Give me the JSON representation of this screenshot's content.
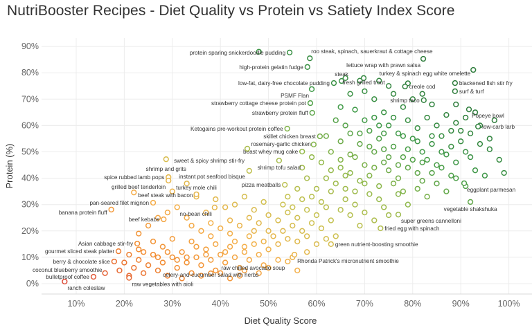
{
  "title": "NutriBooster Recipes - Diet Quality vs Protein vs Satiety Index Score",
  "chart_data": {
    "type": "scatter",
    "title": "NutriBooster Recipes - Diet Quality vs Protein vs Satiety Index Score",
    "xlabel": "Diet Quality Score",
    "ylabel": "Protein (%)",
    "xlim": [
      5,
      102
    ],
    "ylim": [
      -3,
      92
    ],
    "xticks": [
      "10%",
      "20%",
      "30%",
      "40%",
      "50%",
      "60%",
      "70%",
      "80%",
      "90%",
      "100%"
    ],
    "xtick_values": [
      10,
      20,
      30,
      40,
      50,
      60,
      70,
      80,
      90,
      100
    ],
    "yticks": [
      "0%",
      "10%",
      "20%",
      "30%",
      "40%",
      "50%",
      "60%",
      "70%",
      "80%",
      "90%"
    ],
    "ytick_values": [
      0,
      10,
      20,
      30,
      40,
      50,
      60,
      70,
      80,
      90
    ],
    "grid": true,
    "marker": "hollow-circle",
    "color_encoding": "Satiety Index Score",
    "color_scale": [
      "#dc4a36",
      "#f28b30",
      "#f4b04a",
      "#c9c250",
      "#8fb84a",
      "#3f9a48",
      "#2e7d3c"
    ],
    "labeled_points": [
      {
        "label": "protein sparing snickerdoodle pudding",
        "x": 54.4,
        "y": 87.7,
        "side": "left"
      },
      {
        "label": "roo steak, spinach, sauerkraut & cottage cheese",
        "x": 58.6,
        "y": 85.5,
        "side": "above-right"
      },
      {
        "label": "high-protein gelatin fudge",
        "x": 58.1,
        "y": 82.2,
        "side": "left"
      },
      {
        "label": "lettuce wrap with prawn salsa",
        "x": 82.2,
        "y": 85.3,
        "side": "below-left"
      },
      {
        "label": "low-fat, dairy-free chocolate pudding",
        "x": 63.6,
        "y": 76.1,
        "side": "left"
      },
      {
        "label": "steak",
        "x": 65.2,
        "y": 76.9,
        "side": "above"
      },
      {
        "label": "fresh grilled trout",
        "x": 69.8,
        "y": 78.0,
        "side": "above"
      },
      {
        "label": "turkey & spinach egg white omelette",
        "x": 92.6,
        "y": 81.1,
        "side": "below-left"
      },
      {
        "label": "blackened fish stir fry",
        "x": 88.8,
        "y": 76.1,
        "side": "right"
      },
      {
        "label": "creole cod",
        "x": 78.4,
        "y": 74.8,
        "side": "right"
      },
      {
        "label": "PSMF Flan",
        "x": 59.0,
        "y": 73.8,
        "side": "below-left"
      },
      {
        "label": "surf & turf",
        "x": 88.8,
        "y": 73.0,
        "side": "right"
      },
      {
        "label": "strawberry cottage cheese protein pot",
        "x": 58.7,
        "y": 68.5,
        "side": "left"
      },
      {
        "label": "shrimp taco",
        "x": 82.3,
        "y": 69.6,
        "side": "left"
      },
      {
        "label": "strawberry protein fluff",
        "x": 59.1,
        "y": 64.8,
        "side": "left"
      },
      {
        "label": "Popeye bowl",
        "x": 91.7,
        "y": 66.1,
        "side": "below-right"
      },
      {
        "label": "Ketogains pre-workout protein coffee",
        "x": 53.9,
        "y": 58.8,
        "side": "left"
      },
      {
        "label": "low-carb larb",
        "x": 93.6,
        "y": 59.6,
        "side": "right"
      },
      {
        "label": "skillet chicken breast",
        "x": 60.7,
        "y": 55.9,
        "side": "left"
      },
      {
        "label": "rosemary-garlic chicken",
        "x": 59.4,
        "y": 52.8,
        "side": "above-left"
      },
      {
        "label": "beast whey mug cake",
        "x": 57.0,
        "y": 50.1,
        "side": "left"
      },
      {
        "label": "sweet & spicy shrimp stir-fry",
        "x": 45.6,
        "y": 51.2,
        "side": "below-left"
      },
      {
        "label": "shrimp and grits",
        "x": 28.7,
        "y": 47.2,
        "side": "below"
      },
      {
        "label": "instant pot seafood bisque",
        "x": 46.0,
        "y": 42.8,
        "side": "left"
      },
      {
        "label": "shrimp tofu salad",
        "x": 52.2,
        "y": 46.7,
        "side": "below"
      },
      {
        "label": "spice rubbed lamb pops",
        "x": 29.2,
        "y": 40.4,
        "side": "left"
      },
      {
        "label": "grilled beef tenderloin",
        "x": 29.2,
        "y": 39.1,
        "side": "below-left"
      },
      {
        "label": "eggplant parmesan",
        "x": 90.7,
        "y": 38.1,
        "side": "below-right"
      },
      {
        "label": "pizza meatballs",
        "x": 53.4,
        "y": 37.5,
        "side": "left"
      },
      {
        "label": "turkey mole chili",
        "x": 35.0,
        "y": 33.9,
        "side": "above"
      },
      {
        "label": "beef steak with bacon",
        "x": 22.0,
        "y": 34.6,
        "side": "right"
      },
      {
        "label": "vegetable shakshuka",
        "x": 92.0,
        "y": 31.0,
        "side": "below"
      },
      {
        "label": "no-bean chili",
        "x": 38.8,
        "y": 28.9,
        "side": "below-left"
      },
      {
        "label": "pan-seared filet mignon",
        "x": 26.0,
        "y": 30.7,
        "side": "left"
      },
      {
        "label": "banana protein fluff",
        "x": 17.3,
        "y": 28.1,
        "side": "left"
      },
      {
        "label": "super greens cannelloni",
        "x": 77.0,
        "y": 26.2,
        "side": "below-right"
      },
      {
        "label": "beef kebabs",
        "x": 28.2,
        "y": 24.4,
        "side": "left"
      },
      {
        "label": "fried egg with spinach",
        "x": 73.3,
        "y": 21.0,
        "side": "right"
      },
      {
        "label": "Asian cabbage stir-fry",
        "x": 22.7,
        "y": 15.2,
        "side": "left"
      },
      {
        "label": "green nutrient-boosting smoothie",
        "x": 63.0,
        "y": 15.0,
        "side": "right"
      },
      {
        "label": "gourmet sliced steak platter",
        "x": 18.8,
        "y": 12.3,
        "side": "left"
      },
      {
        "label": "Rhonda Patrick's micronutrient smoothie",
        "x": 55.4,
        "y": 11.0,
        "side": "below-right"
      },
      {
        "label": "berry & chocolate slice",
        "x": 17.9,
        "y": 8.4,
        "side": "left"
      },
      {
        "label": "raw chilled avocado soup",
        "x": 54.0,
        "y": 8.4,
        "side": "below-left"
      },
      {
        "label": "coconut blueberry smoothie",
        "x": 16.0,
        "y": 4.0,
        "side": "above-left"
      },
      {
        "label": "bulletproof coffee",
        "x": 13.6,
        "y": 2.6,
        "side": "left"
      },
      {
        "label": "ranch coleslaw",
        "x": 7.6,
        "y": 0.8,
        "side": "below-right"
      },
      {
        "label": "raw vegetables with aioli",
        "x": 21.0,
        "y": 2.2,
        "side": "below-right"
      },
      {
        "label": "celery-and-cucumber salad with herbs",
        "x": 38.0,
        "y": 3.9,
        "side": "below"
      }
    ],
    "points": [
      [
        19,
        5
      ],
      [
        20,
        8
      ],
      [
        21,
        3
      ],
      [
        22,
        6
      ],
      [
        23,
        9
      ],
      [
        24,
        4
      ],
      [
        25,
        7
      ],
      [
        26,
        11
      ],
      [
        27,
        5
      ],
      [
        28,
        8
      ],
      [
        29,
        3
      ],
      [
        30,
        10
      ],
      [
        31,
        6
      ],
      [
        32,
        12
      ],
      [
        33,
        8
      ],
      [
        34,
        4
      ],
      [
        35,
        10
      ],
      [
        36,
        7
      ],
      [
        37,
        13
      ],
      [
        38,
        9
      ],
      [
        39,
        5
      ],
      [
        40,
        11
      ],
      [
        41,
        8
      ],
      [
        42,
        14
      ],
      [
        43,
        10
      ],
      [
        44,
        6
      ],
      [
        45,
        12
      ],
      [
        46,
        9
      ],
      [
        47,
        15
      ],
      [
        48,
        11
      ],
      [
        49,
        7
      ],
      [
        50,
        13
      ],
      [
        32,
        2
      ],
      [
        36,
        3
      ],
      [
        40,
        4
      ],
      [
        44,
        3
      ],
      [
        28,
        14
      ],
      [
        26,
        16
      ],
      [
        30,
        17
      ],
      [
        34,
        16
      ],
      [
        38,
        18
      ],
      [
        42,
        19
      ],
      [
        46,
        18
      ],
      [
        50,
        20
      ],
      [
        24,
        12
      ],
      [
        21,
        11
      ],
      [
        35,
        14
      ],
      [
        39,
        15
      ],
      [
        43,
        16
      ],
      [
        47,
        20
      ],
      [
        29,
        12
      ],
      [
        33,
        10
      ],
      [
        37,
        11
      ],
      [
        41,
        12
      ],
      [
        45,
        14
      ],
      [
        49,
        16
      ],
      [
        31,
        9
      ],
      [
        27,
        10
      ],
      [
        23,
        13
      ],
      [
        51,
        18
      ],
      [
        52,
        15
      ],
      [
        53,
        20
      ],
      [
        54,
        17
      ],
      [
        55,
        22
      ],
      [
        48,
        23
      ],
      [
        46,
        25
      ],
      [
        50,
        26
      ],
      [
        44,
        22
      ],
      [
        42,
        24
      ],
      [
        40,
        21
      ],
      [
        38,
        23
      ],
      [
        36,
        20
      ],
      [
        34,
        22
      ],
      [
        52,
        24
      ],
      [
        54,
        27
      ],
      [
        56,
        25
      ],
      [
        58,
        28
      ],
      [
        53,
        30
      ],
      [
        57,
        20
      ],
      [
        59,
        23
      ],
      [
        60,
        26
      ],
      [
        62,
        29
      ],
      [
        61,
        21
      ],
      [
        63,
        24
      ],
      [
        64,
        18
      ],
      [
        58,
        18
      ],
      [
        56,
        16
      ],
      [
        57,
        32
      ],
      [
        55,
        29
      ],
      [
        59,
        33
      ],
      [
        61,
        31
      ],
      [
        63,
        35
      ],
      [
        65,
        28
      ],
      [
        66,
        32
      ],
      [
        67,
        26
      ],
      [
        68,
        30
      ],
      [
        69,
        22
      ],
      [
        70,
        27
      ],
      [
        71,
        34
      ],
      [
        72,
        24
      ],
      [
        74,
        29
      ],
      [
        75,
        26
      ],
      [
        73,
        32
      ],
      [
        60,
        36
      ],
      [
        62,
        40
      ],
      [
        64,
        38
      ],
      [
        65,
        44
      ],
      [
        66,
        36
      ],
      [
        67,
        42
      ],
      [
        68,
        48
      ],
      [
        69,
        39
      ],
      [
        70,
        45
      ],
      [
        71,
        41
      ],
      [
        72,
        50
      ],
      [
        73,
        37
      ],
      [
        74,
        46
      ],
      [
        75,
        43
      ],
      [
        76,
        52
      ],
      [
        77,
        40
      ],
      [
        78,
        48
      ],
      [
        79,
        44
      ],
      [
        80,
        55
      ],
      [
        81,
        42
      ],
      [
        82,
        50
      ],
      [
        83,
        47
      ],
      [
        84,
        53
      ],
      [
        85,
        45
      ],
      [
        86,
        56
      ],
      [
        87,
        49
      ],
      [
        88,
        52
      ],
      [
        89,
        46
      ],
      [
        90,
        58
      ],
      [
        91,
        50
      ],
      [
        92,
        48
      ],
      [
        94,
        53
      ],
      [
        96,
        51
      ],
      [
        98,
        47
      ],
      [
        63,
        50
      ],
      [
        65,
        54
      ],
      [
        67,
        57
      ],
      [
        69,
        53
      ],
      [
        71,
        58
      ],
      [
        73,
        55
      ],
      [
        75,
        60
      ],
      [
        77,
        57
      ],
      [
        79,
        62
      ],
      [
        81,
        59
      ],
      [
        83,
        63
      ],
      [
        85,
        60
      ],
      [
        87,
        64
      ],
      [
        89,
        61
      ],
      [
        61,
        46
      ],
      [
        66,
        60
      ],
      [
        70,
        62
      ],
      [
        74,
        65
      ],
      [
        78,
        67
      ],
      [
        72,
        70
      ],
      [
        68,
        66
      ],
      [
        76,
        72
      ],
      [
        80,
        70
      ],
      [
        84,
        68
      ],
      [
        64,
        62
      ],
      [
        62,
        56
      ],
      [
        58,
        40
      ],
      [
        57,
        44
      ],
      [
        59,
        48
      ],
      [
        56,
        36
      ],
      [
        54,
        33
      ],
      [
        77,
        34
      ],
      [
        79,
        30
      ],
      [
        81,
        36
      ],
      [
        83,
        33
      ],
      [
        85,
        38
      ],
      [
        87,
        35
      ],
      [
        89,
        40
      ],
      [
        91,
        37
      ],
      [
        93,
        43
      ],
      [
        95,
        41
      ],
      [
        76,
        38
      ],
      [
        78,
        35
      ],
      [
        82,
        39
      ],
      [
        84,
        42
      ],
      [
        86,
        44
      ],
      [
        88,
        41
      ],
      [
        80,
        47
      ],
      [
        74,
        51
      ],
      [
        72,
        44
      ],
      [
        70,
        38
      ],
      [
        68,
        35
      ],
      [
        66,
        41
      ],
      [
        75,
        48
      ],
      [
        77,
        45
      ],
      [
        79,
        51
      ],
      [
        81,
        54
      ],
      [
        69,
        57
      ],
      [
        71,
        52
      ],
      [
        73,
        60
      ],
      [
        67,
        49
      ],
      [
        65,
        47
      ],
      [
        63,
        43
      ],
      [
        82,
        46
      ],
      [
        84,
        56
      ],
      [
        86,
        50
      ],
      [
        88,
        58
      ],
      [
        90,
        54
      ],
      [
        92,
        57
      ],
      [
        94,
        60
      ],
      [
        96,
        55
      ],
      [
        97,
        62
      ],
      [
        93,
        65
      ],
      [
        91,
        63
      ],
      [
        89,
        68
      ],
      [
        78,
        56
      ],
      [
        76,
        63
      ],
      [
        74,
        57
      ],
      [
        72,
        63
      ],
      [
        70,
        73
      ],
      [
        67,
        72
      ],
      [
        65,
        67
      ],
      [
        66,
        78
      ],
      [
        69,
        77
      ],
      [
        73,
        77
      ],
      [
        75,
        75
      ],
      [
        82,
        72
      ],
      [
        79,
        76
      ],
      [
        48,
        88
      ],
      [
        99,
        42
      ],
      [
        23,
        19
      ],
      [
        25,
        22
      ],
      [
        27,
        25
      ],
      [
        29,
        27
      ],
      [
        33,
        25
      ],
      [
        31,
        29
      ],
      [
        37,
        27
      ],
      [
        39,
        32
      ],
      [
        41,
        29
      ],
      [
        35,
        33
      ],
      [
        43,
        30
      ],
      [
        45,
        33
      ],
      [
        47,
        28
      ],
      [
        49,
        31
      ],
      [
        30,
        35
      ],
      [
        33,
        38
      ],
      [
        55,
        10
      ],
      [
        58,
        12
      ],
      [
        60,
        15
      ],
      [
        62,
        17
      ],
      [
        56,
        5
      ],
      [
        50,
        6
      ],
      [
        52,
        9
      ],
      [
        48,
        4
      ],
      [
        45,
        5
      ],
      [
        42,
        2
      ]
    ]
  }
}
